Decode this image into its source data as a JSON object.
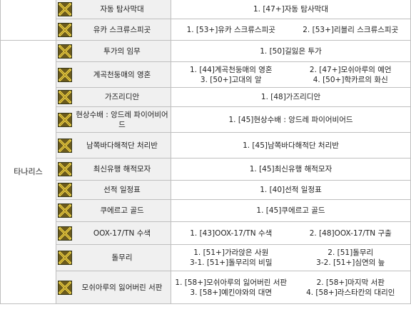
{
  "region_top": "",
  "region_main": "타나리스",
  "rows": [
    {
      "name": "자동 탐사막대",
      "cols": [
        [
          "1. [47+]자동 탐사막대"
        ]
      ]
    },
    {
      "name": "유카 스크류스피곳",
      "cols": [
        [
          "1. [53+]유카 스크류스피곳",
          "2. [53+]리블리 스크류스피곳"
        ]
      ]
    },
    {
      "name": "투가의 임무",
      "cols": [
        [
          "1. [50]길잃은 투가"
        ]
      ]
    },
    {
      "name": "계곡천둥매의 영혼",
      "cols": [
        [
          "1. [44]계곡천둥매의 영혼",
          "2. [47+]모쉬아루의 예언"
        ],
        [
          "3. [50+]고대의 알",
          "4. [50+]학카르의 화신"
        ]
      ]
    },
    {
      "name": "가즈리디안",
      "cols": [
        [
          "1. [48]가즈리디안"
        ]
      ]
    },
    {
      "name": "현상수배 : 앙드레 파이어비어드",
      "cols": [
        [
          "1. [45]현상수배 : 앙드레 파이어비어드"
        ]
      ]
    },
    {
      "name": "남쪽바다해적단 처리반",
      "cols": [
        [
          "1. [45]남쪽바다해적단 처리반"
        ]
      ]
    },
    {
      "name": "최신유행 해적모자",
      "cols": [
        [
          "1. [45]최신유행 해적모자"
        ]
      ]
    },
    {
      "name": "선적 일정표",
      "cols": [
        [
          "1. [40]선적 일정표"
        ]
      ]
    },
    {
      "name": "쿠에르고 골드",
      "cols": [
        [
          "1. [45]쿠에르고 골드"
        ]
      ]
    },
    {
      "name": "OOX-17/TN 수색",
      "cols": [
        [
          "1. [43]OOX-17/TN 수색",
          "2. [48]OOX-17/TN 구출"
        ]
      ]
    },
    {
      "name": "돌무리",
      "cols": [
        [
          "1. [51+]가라앉은 사원",
          "2. [51]돌무리"
        ],
        [
          "3-1. [51+]돌무리의 비밀",
          "3-2. [51+]심연의 늪"
        ]
      ]
    },
    {
      "name": "모쉬아루의 잃어버린 서판",
      "cols": [
        [
          "1. [58+]모쉬아루의 잃어버린 서판",
          "2. [58+]마지막 서판"
        ],
        [
          "3. [58+]예킨야와의 대면",
          "4. [58+]라스타칸의 대리인"
        ]
      ]
    }
  ],
  "icon": {
    "name": "crossed-swords-icon",
    "colors": {
      "bg": "#3a3a1a",
      "blade": "#f2d84a",
      "edge": "#8a6a10"
    }
  }
}
